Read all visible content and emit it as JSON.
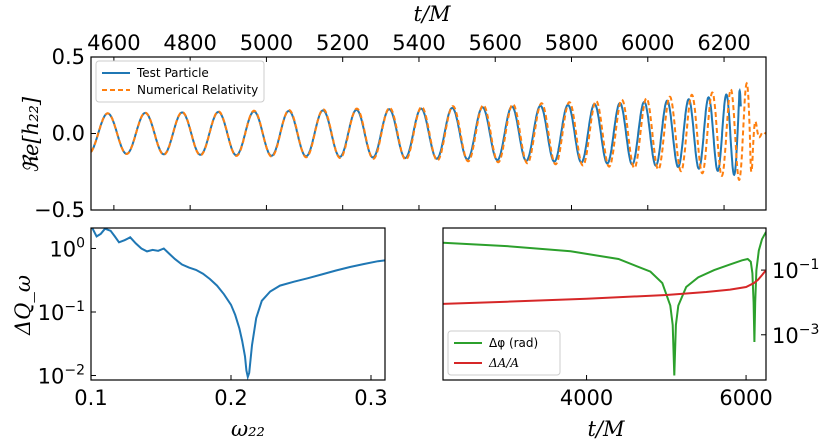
{
  "colors": {
    "blue": "#1f77b4",
    "orange": "#ff7f0e",
    "green": "#2ca02c",
    "red": "#d62728"
  },
  "chart_data": [
    {
      "type": "line",
      "panel": "top",
      "xlabel": "t/M",
      "ylabel": "ℜe[h₂₂]",
      "xlim": [
        4540,
        6310
      ],
      "ylim": [
        -0.5,
        0.5
      ],
      "xticks": [
        "4600",
        "4800",
        "5000",
        "5200",
        "5400",
        "5600",
        "5800",
        "6000",
        "6200"
      ],
      "xtick_values": [
        4600,
        4800,
        5000,
        5200,
        5400,
        5600,
        5800,
        6000,
        6200
      ],
      "yticks": [
        "0.5",
        "0.0",
        "−0.5"
      ],
      "ytick_values": [
        0.5,
        0.0,
        -0.5
      ],
      "legend_position": "top-left",
      "series": [
        {
          "name": "Test Particle",
          "style": "solid",
          "color": "#1f77b4",
          "waveform": {
            "t_start": 4540,
            "t_merger": 6240,
            "amplitude_start": 0.13,
            "amplitude_peak": 0.33,
            "period_start": 100,
            "period_end": 26
          }
        },
        {
          "name": "Numerical Relativity",
          "style": "dashed",
          "color": "#ff7f0e",
          "waveform": {
            "t_start": 4540,
            "t_merger": 6268,
            "amplitude_start": 0.13,
            "amplitude_peak": 0.4,
            "period_start": 100,
            "period_end": 26,
            "ringdown_end": 6310
          }
        }
      ]
    },
    {
      "type": "line",
      "panel": "bottom-left",
      "xlabel": "ω₂₂",
      "ylabel": "ΔQ_ω",
      "yscale": "log",
      "xlim": [
        0.1,
        0.31
      ],
      "ylim": [
        0.0085,
        2.1
      ],
      "xticks": [
        "0.1",
        "0.2",
        "0.3"
      ],
      "xtick_values": [
        0.1,
        0.2,
        0.3
      ],
      "yticks": [
        {
          "base": "10",
          "exp": "0",
          "value": 1
        },
        {
          "base": "10",
          "exp": "−1",
          "value": 0.1
        },
        {
          "base": "10",
          "exp": "−2",
          "value": 0.01
        }
      ],
      "series": [
        {
          "name": "ΔQ_ω",
          "color": "#1f77b4",
          "x": [
            0.1,
            0.104,
            0.107,
            0.11,
            0.114,
            0.117,
            0.12,
            0.124,
            0.128,
            0.132,
            0.136,
            0.14,
            0.144,
            0.148,
            0.152,
            0.156,
            0.16,
            0.165,
            0.17,
            0.175,
            0.18,
            0.185,
            0.19,
            0.195,
            0.2,
            0.203,
            0.206,
            0.208,
            0.21,
            0.211,
            0.212,
            0.213,
            0.215,
            0.218,
            0.222,
            0.228,
            0.235,
            0.245,
            0.255,
            0.265,
            0.275,
            0.285,
            0.295,
            0.305,
            0.31
          ],
          "y": [
            2.3,
            1.55,
            1.7,
            2.05,
            1.9,
            1.55,
            1.25,
            1.35,
            1.5,
            1.2,
            1.0,
            0.9,
            0.95,
            0.92,
            1.0,
            0.82,
            0.68,
            0.56,
            0.5,
            0.46,
            0.4,
            0.33,
            0.26,
            0.19,
            0.13,
            0.09,
            0.055,
            0.035,
            0.02,
            0.012,
            0.0095,
            0.011,
            0.03,
            0.08,
            0.15,
            0.21,
            0.26,
            0.3,
            0.34,
            0.39,
            0.45,
            0.51,
            0.57,
            0.63,
            0.65
          ]
        }
      ]
    },
    {
      "type": "line",
      "panel": "bottom-right",
      "xlabel": "t/M",
      "yscale": "log",
      "yaxis_side": "right",
      "xlim": [
        2200,
        6250
      ],
      "ylim": [
        4e-05,
        2.0
      ],
      "xticks": [
        "4000",
        "6000"
      ],
      "xtick_values": [
        4000,
        6000
      ],
      "yticks": [
        {
          "base": "10",
          "exp": "−1",
          "value": 0.1
        },
        {
          "base": "10",
          "exp": "−3",
          "value": 0.001
        }
      ],
      "legend_position": "bottom-left",
      "series": [
        {
          "name": "Δφ (rad)",
          "color": "#2ca02c",
          "x": [
            2200,
            3000,
            3800,
            4400,
            4800,
            4950,
            5050,
            5080,
            5100,
            5120,
            5150,
            5250,
            5400,
            5600,
            5800,
            5950,
            6020,
            6060,
            6080,
            6095,
            6105,
            6115,
            6130,
            6160,
            6200,
            6250
          ],
          "y": [
            0.7,
            0.55,
            0.38,
            0.22,
            0.09,
            0.04,
            0.008,
            0.002,
            5.5e-05,
            0.002,
            0.008,
            0.03,
            0.06,
            0.1,
            0.15,
            0.2,
            0.22,
            0.18,
            0.08,
            0.01,
            0.0006,
            0.01,
            0.1,
            0.4,
            0.9,
            1.5
          ]
        },
        {
          "name": "ΔA/A",
          "color": "#d62728",
          "x": [
            2200,
            3000,
            4000,
            5000,
            5500,
            5800,
            6000,
            6100,
            6150,
            6200,
            6250
          ],
          "y": [
            0.009,
            0.0105,
            0.013,
            0.017,
            0.021,
            0.025,
            0.03,
            0.04,
            0.05,
            0.07,
            0.1
          ]
        }
      ]
    }
  ]
}
